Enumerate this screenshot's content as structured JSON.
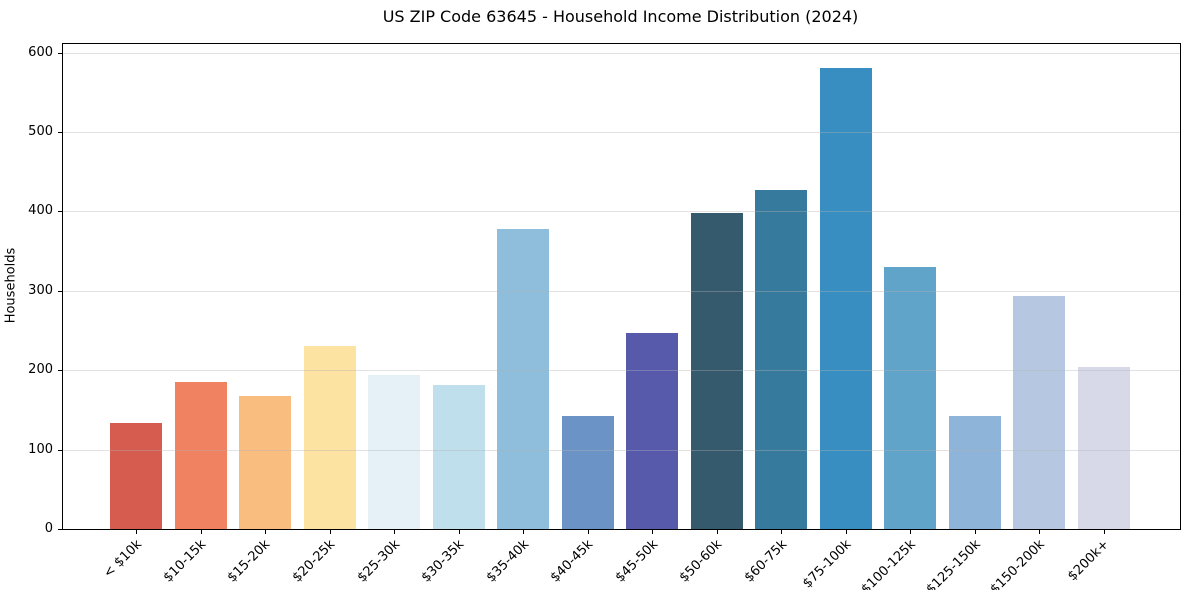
{
  "chart_data": {
    "type": "bar",
    "title": "US ZIP Code 63645 - Household Income Distribution (2024)",
    "xlabel": "",
    "ylabel": "Households",
    "categories": [
      "< $10k",
      "$10-15k",
      "$15-20k",
      "$20-25k",
      "$25-30k",
      "$30-35k",
      "$35-40k",
      "$40-45k",
      "$45-50k",
      "$50-60k",
      "$60-75k",
      "$75-100k",
      "$100-125k",
      "$125-150k",
      "$150-200k",
      "$200k+"
    ],
    "values": [
      133,
      185,
      167,
      231,
      194,
      181,
      378,
      143,
      247,
      398,
      427,
      581,
      330,
      142,
      294,
      204
    ],
    "bar_colors": [
      "#d65c4f",
      "#f08262",
      "#fabd80",
      "#fde3a1",
      "#e6f1f7",
      "#bedfeb",
      "#8fbddc",
      "#6b93c5",
      "#575aab",
      "#35596d",
      "#367b9e",
      "#398ec1",
      "#61a4c9",
      "#8fb4d9",
      "#b6c8e1",
      "#d7d9e8"
    ],
    "yticks": [
      0,
      100,
      200,
      300,
      400,
      500,
      600
    ],
    "ylim": [
      0,
      611
    ],
    "grid": "horizontal",
    "legend_position": "none",
    "bar_width_fraction": 0.8
  },
  "colors": {
    "background": "#ffffff",
    "spine": "#000000",
    "grid": "#e8e8e8",
    "text": "#000000"
  }
}
